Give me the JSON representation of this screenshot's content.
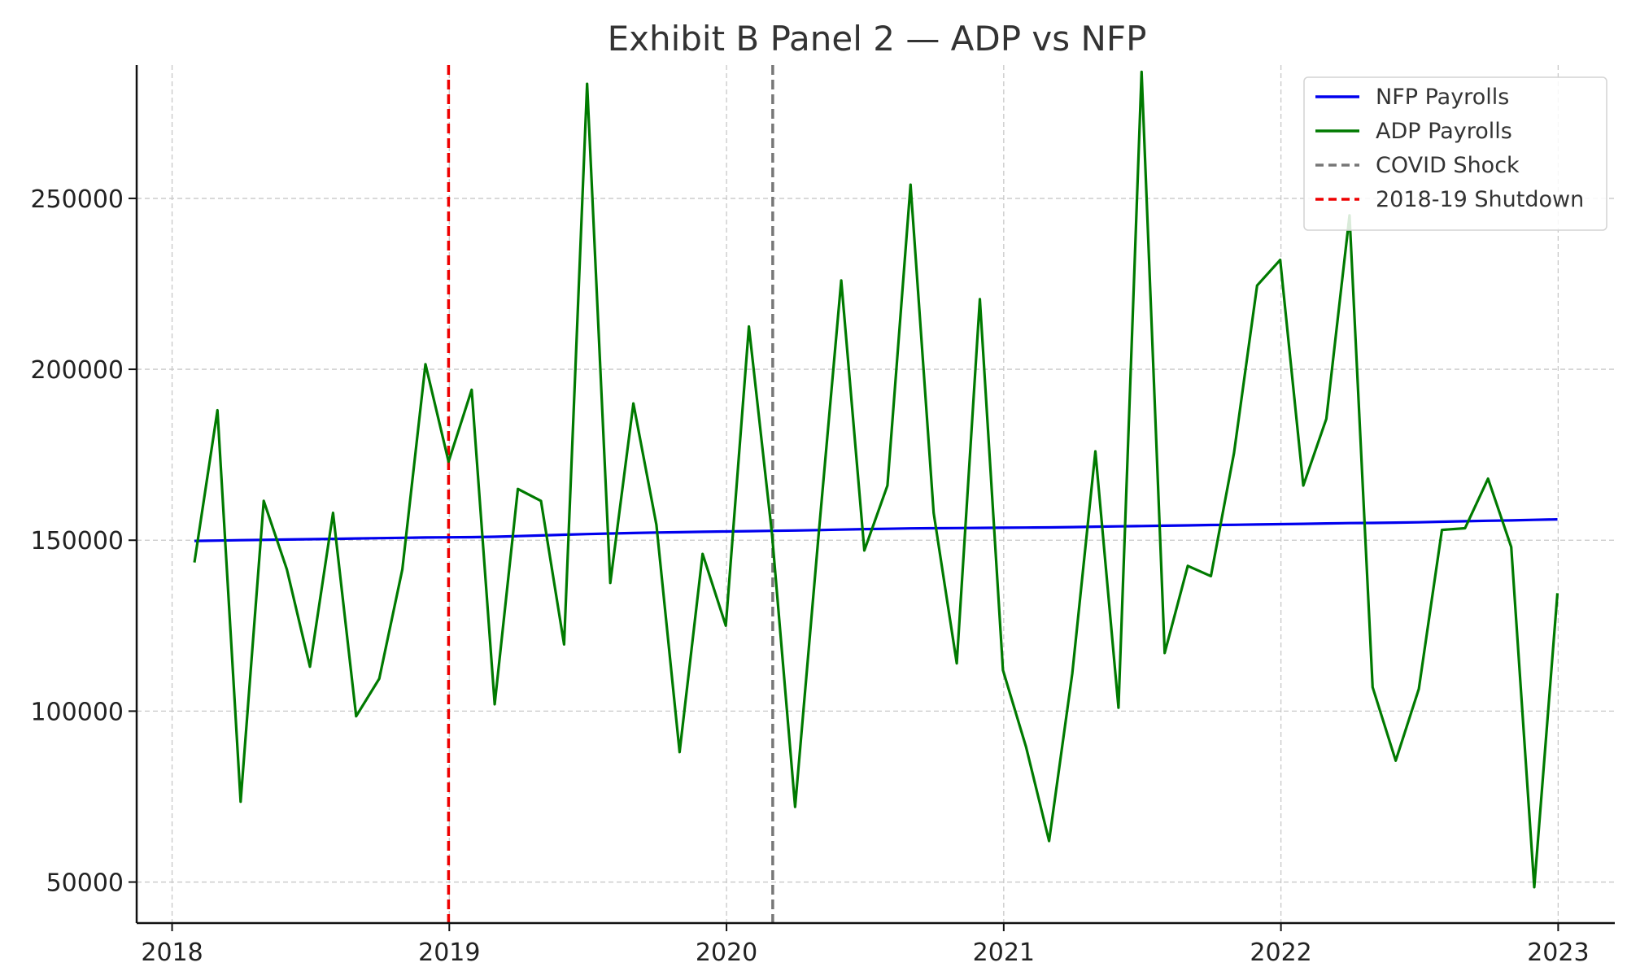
{
  "chart_data": {
    "type": "line",
    "title": "Exhibit B Panel 2 — ADP vs NFP",
    "xlabel": "",
    "ylabel": "",
    "xlim": [
      "2017-11-15",
      "2023-03-15"
    ],
    "ylim": [
      38000,
      289000
    ],
    "x_ticks": [
      "2018",
      "2019",
      "2020",
      "2021",
      "2022",
      "2023"
    ],
    "y_ticks": [
      50000,
      100000,
      150000,
      200000,
      250000
    ],
    "grid": true,
    "legend_position": "top-right",
    "x": [
      "2018-01-31",
      "2018-02-28",
      "2018-03-31",
      "2018-04-30",
      "2018-05-31",
      "2018-06-30",
      "2018-07-31",
      "2018-08-31",
      "2018-09-30",
      "2018-10-31",
      "2018-11-30",
      "2018-12-31",
      "2019-01-31",
      "2019-02-28",
      "2019-03-31",
      "2019-04-30",
      "2019-05-31",
      "2019-06-30",
      "2019-07-31",
      "2019-08-31",
      "2019-09-30",
      "2019-10-31",
      "2019-11-30",
      "2019-12-31",
      "2020-01-31",
      "2020-02-29",
      "2020-03-31",
      "2020-04-30",
      "2020-05-31",
      "2020-06-30",
      "2020-07-31",
      "2020-08-31",
      "2020-09-30",
      "2020-10-31",
      "2020-11-30",
      "2020-12-31",
      "2021-01-31",
      "2021-02-28",
      "2021-03-31",
      "2021-04-30",
      "2021-05-31",
      "2021-06-30",
      "2021-07-31",
      "2021-08-31",
      "2021-09-30",
      "2021-10-31",
      "2021-11-30",
      "2021-12-31",
      "2022-01-31",
      "2022-02-28",
      "2022-03-31",
      "2022-04-30",
      "2022-05-31",
      "2022-06-30",
      "2022-07-31",
      "2022-08-31",
      "2022-09-30",
      "2022-10-31",
      "2022-11-30",
      "2022-12-31"
    ],
    "series": [
      {
        "name": "NFP Payrolls",
        "color": "#0000ee",
        "values": [
          149800,
          149900,
          150000,
          150100,
          150200,
          150300,
          150400,
          150500,
          150600,
          150700,
          150800,
          150850,
          150900,
          151000,
          151200,
          151400,
          151600,
          151800,
          151950,
          152100,
          152250,
          152350,
          152450,
          152550,
          152650,
          152750,
          152850,
          152950,
          153100,
          153250,
          153350,
          153450,
          153500,
          153550,
          153600,
          153650,
          153700,
          153750,
          153850,
          153950,
          154050,
          154150,
          154250,
          154350,
          154450,
          154500,
          154600,
          154700,
          154800,
          154900,
          155000,
          155050,
          155150,
          155250,
          155400,
          155550,
          155700,
          155800,
          155950,
          156100
        ]
      },
      {
        "name": "ADP Payrolls",
        "color": "#007a00",
        "values": [
          143500,
          188000,
          73500,
          161500,
          141500,
          113000,
          158000,
          98500,
          109500,
          141500,
          201500,
          173000,
          194000,
          102000,
          165000,
          161500,
          119500,
          283500,
          137500,
          190000,
          154500,
          88000,
          146000,
          125000,
          212500,
          152000,
          72000,
          150000,
          226000,
          147000,
          166000,
          254000,
          158000,
          114000,
          220500,
          112000,
          89500,
          62000,
          111000,
          176000,
          101000,
          287000,
          117000,
          142500,
          139500,
          175500,
          224500,
          232000,
          166000,
          185500,
          245000,
          107000,
          85500,
          106500,
          153000,
          153500,
          168000,
          148000,
          48500,
          134500
        ]
      }
    ],
    "markers": [
      {
        "name": "COVID Shock",
        "x": "2020-03-01",
        "color": "#777777"
      },
      {
        "name": "2018-19 Shutdown",
        "x": "2018-12-31",
        "color": "#ee0000"
      }
    ]
  }
}
